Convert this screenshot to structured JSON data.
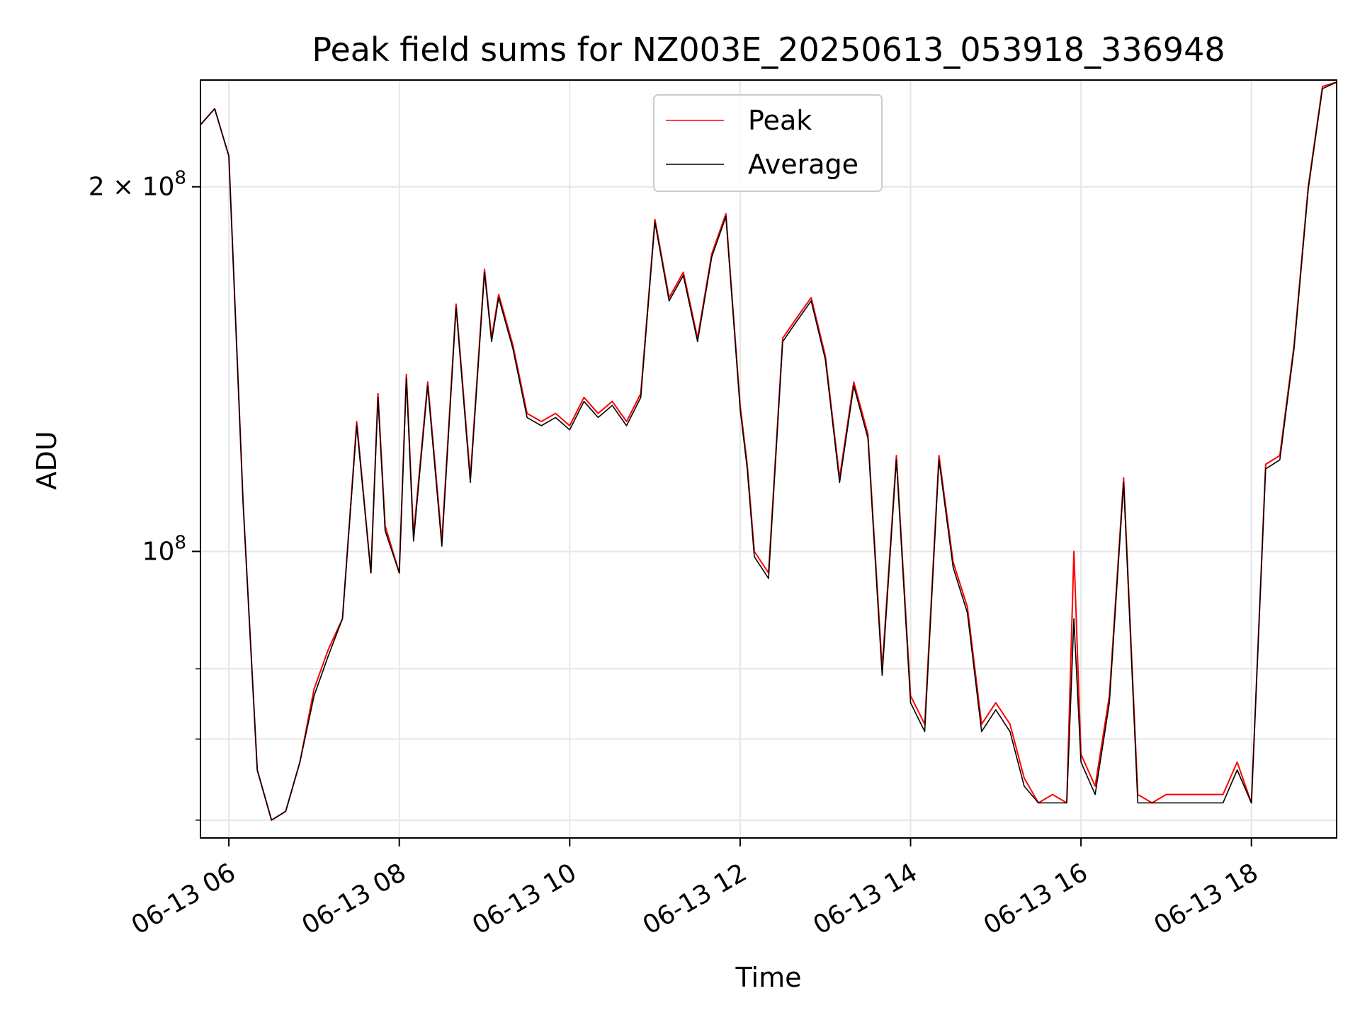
{
  "chart_data": {
    "type": "line",
    "title": "Peak field sums for NZ003E_20250613_053918_336948",
    "xlabel": "Time",
    "ylabel": "ADU",
    "y_scale": "log",
    "xlim": [
      "2025-06-13 05:40",
      "2025-06-13 19:00"
    ],
    "ylim": [
      58000000,
      245000000
    ],
    "grid": true,
    "legend_position": "top-center",
    "x_tick_labels": [
      "06-13 06",
      "06-13 08",
      "06-13 10",
      "06-13 12",
      "06-13 14",
      "06-13 16",
      "06-13 18"
    ],
    "x_ticks": [
      "2025-06-13 06:00",
      "2025-06-13 08:00",
      "2025-06-13 10:00",
      "2025-06-13 12:00",
      "2025-06-13 14:00",
      "2025-06-13 16:00",
      "2025-06-13 18:00"
    ],
    "y_major_ticks": [
      {
        "value": 100000000,
        "label_base": "10",
        "label_exp": "8",
        "label_prefix": ""
      },
      {
        "value": 200000000,
        "label_base": "10",
        "label_exp": "8",
        "label_prefix": "2 × "
      }
    ],
    "y_minor_ticks": [
      60000000,
      70000000,
      80000000
    ],
    "x": [
      "05:40",
      "05:50",
      "06:00",
      "06:10",
      "06:20",
      "06:30",
      "06:40",
      "06:50",
      "07:00",
      "07:10",
      "07:20",
      "07:30",
      "07:40",
      "07:45",
      "07:50",
      "08:00",
      "08:05",
      "08:10",
      "08:20",
      "08:30",
      "08:40",
      "08:50",
      "09:00",
      "09:05",
      "09:10",
      "09:20",
      "09:30",
      "09:40",
      "09:50",
      "10:00",
      "10:10",
      "10:20",
      "10:30",
      "10:40",
      "10:50",
      "11:00",
      "11:10",
      "11:20",
      "11:30",
      "11:40",
      "11:50",
      "12:00",
      "12:05",
      "12:10",
      "12:20",
      "12:30",
      "12:40",
      "12:50",
      "13:00",
      "13:10",
      "13:20",
      "13:30",
      "13:40",
      "13:50",
      "14:00",
      "14:10",
      "14:20",
      "14:30",
      "14:40",
      "14:50",
      "15:00",
      "15:10",
      "15:20",
      "15:30",
      "15:40",
      "15:50",
      "15:55",
      "16:00",
      "16:10",
      "16:20",
      "16:30",
      "16:40",
      "16:50",
      "17:00",
      "17:10",
      "17:20",
      "17:30",
      "17:40",
      "17:50",
      "18:00",
      "18:10",
      "18:20",
      "18:30",
      "18:40",
      "18:50",
      "19:00"
    ],
    "series": [
      {
        "name": "Peak",
        "color": "#ff0000",
        "values": [
          225000000,
          232000000,
          212000000,
          110000000,
          66000000,
          60000000,
          61000000,
          67000000,
          77000000,
          83000000,
          88000000,
          128000000,
          96000000,
          135000000,
          105000000,
          96000000,
          140000000,
          103000000,
          138000000,
          102000000,
          160000000,
          115000000,
          171000000,
          150000000,
          163000000,
          148000000,
          130000000,
          128000000,
          130000000,
          127000000,
          134000000,
          130000000,
          133000000,
          128000000,
          135000000,
          188000000,
          162000000,
          170000000,
          150000000,
          176000000,
          190000000,
          132000000,
          118000000,
          100000000,
          96000000,
          150000000,
          156000000,
          162000000,
          145000000,
          115000000,
          138000000,
          125000000,
          80000000,
          120000000,
          76000000,
          72000000,
          120000000,
          98000000,
          90000000,
          72000000,
          75000000,
          72000000,
          65000000,
          62000000,
          63000000,
          62000000,
          100000000,
          68000000,
          64000000,
          76000000,
          115000000,
          63000000,
          62000000,
          63000000,
          63000000,
          63000000,
          63000000,
          63000000,
          67000000,
          62000000,
          118000000,
          120000000,
          148000000,
          200000000,
          242000000,
          244000000
        ]
      },
      {
        "name": "Average",
        "color": "#000000",
        "values": [
          225000000,
          232000000,
          212000000,
          110000000,
          66000000,
          60000000,
          61000000,
          67000000,
          76000000,
          82000000,
          88000000,
          127000000,
          96000000,
          134000000,
          104000000,
          96000000,
          139000000,
          102000000,
          137000000,
          101000000,
          159000000,
          114000000,
          170000000,
          149000000,
          162000000,
          147000000,
          129000000,
          127000000,
          129000000,
          126000000,
          133000000,
          129000000,
          132000000,
          127000000,
          134000000,
          187000000,
          161000000,
          169000000,
          149000000,
          175000000,
          189000000,
          131000000,
          117000000,
          99000000,
          95000000,
          149000000,
          155000000,
          161000000,
          144000000,
          114000000,
          137000000,
          124000000,
          79000000,
          119000000,
          75000000,
          71000000,
          119000000,
          97000000,
          89000000,
          71000000,
          74000000,
          71000000,
          64000000,
          62000000,
          62000000,
          62000000,
          88000000,
          67000000,
          63000000,
          75000000,
          114000000,
          62000000,
          62000000,
          62000000,
          62000000,
          62000000,
          62000000,
          62000000,
          66000000,
          62000000,
          117000000,
          119000000,
          147000000,
          199000000,
          241000000,
          244000000
        ]
      }
    ]
  }
}
